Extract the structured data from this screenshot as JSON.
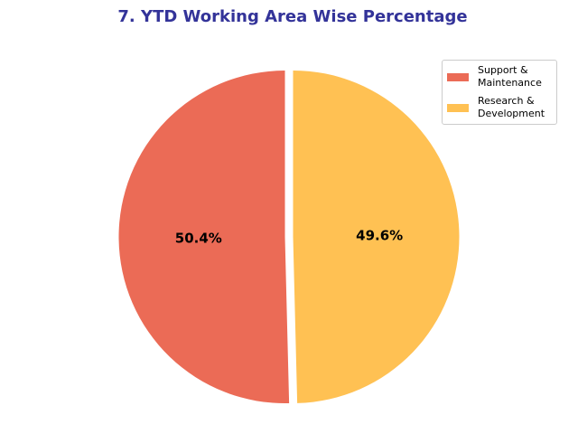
{
  "colors": {
    "title": "#333399"
  },
  "chart_data": {
    "type": "pie",
    "title": "7. YTD Working Area Wise Percentage",
    "slices": [
      {
        "label": "Support &\nMaintenance",
        "value": 50.4,
        "display": "50.4%",
        "color": "#EB6B56"
      },
      {
        "label": "Research &\nDevelopment",
        "value": 49.6,
        "display": "49.6%",
        "color": "#FFC153"
      }
    ],
    "legend_position": "top-right",
    "start_direction": "top",
    "order": "counterclockwise",
    "exploded": true
  }
}
